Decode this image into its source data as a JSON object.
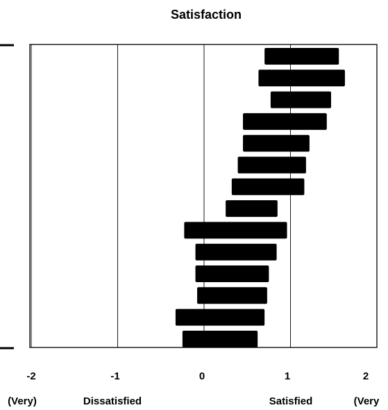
{
  "chart_data": {
    "type": "bar",
    "orientation": "horizontal-range",
    "title": "Satisfaction",
    "xlim": [
      -2,
      2
    ],
    "ticks": [
      -2,
      -1,
      0,
      1,
      2
    ],
    "tick_labels": [
      "-2",
      "-1",
      "0",
      "1",
      "2"
    ],
    "scale_labels": [
      {
        "text": "(Very)",
        "x": -2
      },
      {
        "text": "Dissatisfied",
        "x": -1
      },
      {
        "text": "Satisfied",
        "x": 1
      },
      {
        "text": "(Very",
        "x": 2
      }
    ],
    "grid": "vertical-at-ticks",
    "ranges": [
      {
        "low": 0.7,
        "high": 1.56
      },
      {
        "low": 0.63,
        "high": 1.63
      },
      {
        "low": 0.77,
        "high": 1.47
      },
      {
        "low": 0.45,
        "high": 1.42
      },
      {
        "low": 0.45,
        "high": 1.22
      },
      {
        "low": 0.39,
        "high": 1.18
      },
      {
        "low": 0.32,
        "high": 1.16
      },
      {
        "low": 0.25,
        "high": 0.85
      },
      {
        "low": -0.23,
        "high": 0.96
      },
      {
        "low": -0.1,
        "high": 0.84
      },
      {
        "low": -0.1,
        "high": 0.75
      },
      {
        "low": -0.08,
        "high": 0.73
      },
      {
        "low": -0.33,
        "high": 0.7
      },
      {
        "low": -0.25,
        "high": 0.62
      }
    ]
  }
}
